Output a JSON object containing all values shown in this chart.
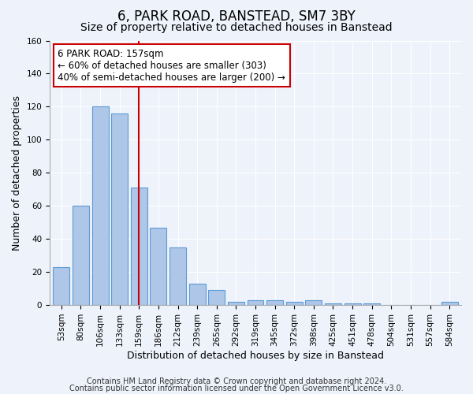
{
  "title1": "6, PARK ROAD, BANSTEAD, SM7 3BY",
  "title2": "Size of property relative to detached houses in Banstead",
  "xlabel": "Distribution of detached houses by size in Banstead",
  "ylabel": "Number of detached properties",
  "bar_labels": [
    "53sqm",
    "80sqm",
    "106sqm",
    "133sqm",
    "159sqm",
    "186sqm",
    "212sqm",
    "239sqm",
    "265sqm",
    "292sqm",
    "319sqm",
    "345sqm",
    "372sqm",
    "398sqm",
    "425sqm",
    "451sqm",
    "478sqm",
    "504sqm",
    "531sqm",
    "557sqm",
    "584sqm"
  ],
  "bar_values": [
    23,
    60,
    120,
    116,
    71,
    47,
    35,
    13,
    9,
    2,
    3,
    3,
    2,
    3,
    1,
    1,
    1,
    0,
    0,
    0,
    2
  ],
  "bar_color": "#aec6e8",
  "bar_edge_color": "#5b9bd5",
  "vline_color": "#cc0000",
  "annotation_text": "6 PARK ROAD: 157sqm\n← 60% of detached houses are smaller (303)\n40% of semi-detached houses are larger (200) →",
  "annotation_box_color": "#ffffff",
  "annotation_box_edge": "#cc0000",
  "ylim": [
    0,
    160
  ],
  "yticks": [
    0,
    20,
    40,
    60,
    80,
    100,
    120,
    140,
    160
  ],
  "background_color": "#eef2fb",
  "grid_color": "#ffffff",
  "footer1": "Contains HM Land Registry data © Crown copyright and database right 2024.",
  "footer2": "Contains public sector information licensed under the Open Government Licence v3.0.",
  "title1_fontsize": 12,
  "title2_fontsize": 10,
  "xlabel_fontsize": 9,
  "ylabel_fontsize": 9,
  "tick_fontsize": 7.5,
  "annotation_fontsize": 8.5,
  "footer_fontsize": 7
}
